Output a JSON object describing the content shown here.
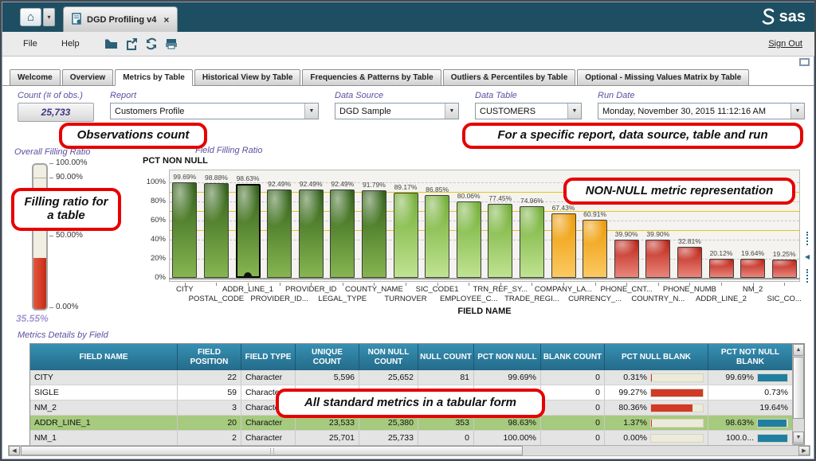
{
  "window": {
    "tab_title": "DGD Profiling v4",
    "tab_close": "×",
    "home_glyph": "⌂",
    "caret_glyph": "▾",
    "logo_text": "sas",
    "menu": {
      "file": "File",
      "help": "Help"
    },
    "icons": [
      "home-icon",
      "open-folder-icon",
      "export-icon",
      "refresh-icon",
      "print-icon"
    ],
    "sign_out": "Sign Out"
  },
  "tabs": {
    "active": "Metrics by Table",
    "labels": [
      "Welcome",
      "Overview",
      "Metrics by Table",
      "Historical View by Table",
      "Frequencies & Patterns by Table",
      "Outliers & Percentiles by Table",
      "Optional - Missing Values Matrix by Table"
    ]
  },
  "filters": {
    "count": {
      "label": "Count (# of obs.)",
      "value": "25,733"
    },
    "report": {
      "label": "Report",
      "value": "Customers Profile"
    },
    "data_source": {
      "label": "Data Source",
      "value": "DGD Sample"
    },
    "data_table": {
      "label": "Data Table",
      "value": "CUSTOMERS"
    },
    "run_date": {
      "label": "Run Date",
      "value": "Monday, November 30, 2015 11:12:16 AM"
    }
  },
  "callouts": {
    "observations": "Observations count",
    "context": "For a specific report, data source, table and run",
    "filling_ratio": "Filling ratio for a table",
    "non_null": "NON-NULL metric representation",
    "tabular": "All standard metrics in a tabular form"
  },
  "gauge": {
    "title": "Overall Filling Ratio",
    "ticks": [
      {
        "label": "100.00%",
        "pct": 100
      },
      {
        "label": "90.00%",
        "pct": 90
      },
      {
        "label": "50.00%",
        "pct": 50
      },
      {
        "label": "0.00%",
        "pct": 0
      }
    ],
    "value": 35.55,
    "value_label": "35.55%"
  },
  "chart_data": {
    "type": "bar",
    "title": "Field Filling Ratio",
    "metric": "PCT NON NULL",
    "xlabel": "FIELD NAME",
    "ylim": [
      0,
      100
    ],
    "yticks": [
      {
        "label": "100%",
        "pct": 100
      },
      {
        "label": "80%",
        "pct": 80
      },
      {
        "label": "60%",
        "pct": 60
      },
      {
        "label": "40%",
        "pct": 40
      },
      {
        "label": "20%",
        "pct": 20
      },
      {
        "label": "0%",
        "pct": 0
      }
    ],
    "reference_lines": [
      90,
      70,
      50
    ],
    "selected_index": 2,
    "categories": [
      "CITY",
      "POSTAL_CODE",
      "ADDR_LINE_1",
      "PROVIDER_ID...",
      "PROVIDER_ID",
      "LEGAL_TYPE",
      "COUNTY_NAME",
      "TURNOVER",
      "SIC_CODE1",
      "EMPLOYEE_C...",
      "TRN_REF_SY...",
      "TRADE_REGI...",
      "COMPANY_LA...",
      "CURRENCY_...",
      "PHONE_CNT...",
      "COUNTRY_N...",
      "PHONE_NUMB",
      "ADDR_LINE_2",
      "NM_2",
      "SIC_CO..."
    ],
    "values": [
      99.69,
      98.88,
      98.63,
      92.49,
      92.49,
      92.49,
      91.79,
      89.17,
      86.85,
      80.06,
      77.45,
      74.96,
      67.43,
      60.91,
      39.9,
      39.9,
      32.81,
      20.12,
      19.64,
      19.25
    ],
    "value_labels": [
      "99.69%",
      "98.88%",
      "98.63%",
      "92.49%",
      "92.49%",
      "92.49%",
      "91.79%",
      "89.17%",
      "86.85%",
      "80.06%",
      "77.45%",
      "74.96%",
      "67.43%",
      "60.91%",
      "39.90%",
      "39.90%",
      "32.81%",
      "20.12%",
      "19.64%",
      "19.25%"
    ],
    "color_rules": [
      [
        90,
        "dark_green"
      ],
      [
        70,
        "light_green"
      ],
      [
        50,
        "orange"
      ],
      [
        0,
        "red"
      ]
    ]
  },
  "table": {
    "title": "Metrics Details by Field",
    "columns": [
      "FIELD NAME",
      "FIELD POSITION",
      "FIELD TYPE",
      "UNIQUE COUNT",
      "NON NULL COUNT",
      "NULL COUNT",
      "PCT NON NULL",
      "BLANK COUNT",
      "PCT NULL BLANK",
      "PCT NOT NULL BLANK"
    ],
    "rows": [
      {
        "cells": [
          "CITY",
          "22",
          "Character",
          "5,596",
          "25,652",
          "81",
          "99.69%",
          "0"
        ],
        "pct_null_blank": {
          "text": "0.31%",
          "fill": 0.31
        },
        "pct_not_null_blank": {
          "text": "99.69%",
          "fill": 99.69
        },
        "selected": false
      },
      {
        "cells": [
          "SIGLE",
          "59",
          "Character",
          "",
          "",
          "",
          "",
          "0"
        ],
        "pct_null_blank": {
          "text": "99.27%",
          "fill": 99.27
        },
        "pct_not_null_blank": {
          "text": "0.73%",
          "fill": null
        },
        "selected": false
      },
      {
        "cells": [
          "NM_2",
          "3",
          "Character",
          "",
          "",
          "",
          "",
          "0"
        ],
        "pct_null_blank": {
          "text": "80.36%",
          "fill": 80.36
        },
        "pct_not_null_blank": {
          "text": "19.64%",
          "fill": null
        },
        "selected": false
      },
      {
        "cells": [
          "ADDR_LINE_1",
          "20",
          "Character",
          "23,533",
          "25,380",
          "353",
          "98.63%",
          "0"
        ],
        "pct_null_blank": {
          "text": "1.37%",
          "fill": 1.37
        },
        "pct_not_null_blank": {
          "text": "98.63%",
          "fill": 98.63
        },
        "selected": true
      },
      {
        "cells": [
          "NM_1",
          "2",
          "Character",
          "25,701",
          "25,733",
          "0",
          "100.00%",
          "0"
        ],
        "pct_null_blank": {
          "text": "0.00%",
          "fill": 0
        },
        "pct_not_null_blank": {
          "text": "100.0...",
          "fill": 100
        },
        "selected": false
      }
    ]
  },
  "colors": {
    "titlebar": "#1e4e61",
    "accent_purple": "#5b4fa0",
    "value_purple": "#3f3583",
    "callout_red": "#e60000",
    "reference_yellow": "#e3c61d",
    "gauge_red": "#c62b14",
    "table_header_teal": "#2d7fa1",
    "selected_row_green": "#a6ca7e",
    "metric_bar_red": "#d03a27",
    "metric_bar_teal": "#1f7fa0",
    "bar_palette": {
      "dark_green": {
        "dark": "#33611a",
        "light": "#86b551"
      },
      "light_green": {
        "dark": "#71ad35",
        "light": "#c0e392"
      },
      "orange": {
        "dark": "#ec9a05",
        "light": "#fcc963"
      },
      "red": {
        "dark": "#bc2217",
        "light": "#e9867b"
      }
    }
  }
}
